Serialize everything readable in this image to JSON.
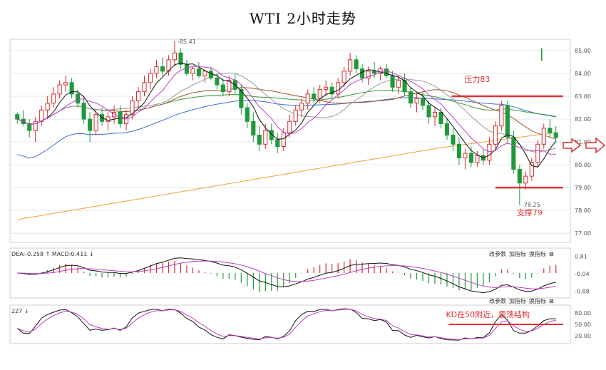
{
  "title": "WTI 2小时走势",
  "chart_data": [
    {
      "type": "candlestick",
      "panel": "price",
      "ylim": [
        76.6,
        85.5
      ],
      "y_ticks": [
        "85.00",
        "84.00",
        "83.00",
        "82.00",
        "81.00",
        "80.00",
        "79.00",
        "78.00",
        "77.00"
      ],
      "y_tick_values": [
        85,
        84,
        83,
        82,
        81,
        80,
        79,
        78,
        77
      ],
      "high_label": "85.41",
      "low_label": "78.25",
      "annotations": {
        "resistance": "压力83",
        "support": "支撑79"
      },
      "levels": {
        "resistance": 83.0,
        "support": 79.0
      },
      "candles": [
        [
          82.2,
          82.3,
          81.8,
          82.0
        ],
        [
          82.0,
          82.4,
          81.7,
          81.8
        ],
        [
          81.8,
          82.0,
          81.2,
          81.5
        ],
        [
          81.5,
          82.1,
          81.0,
          81.9
        ],
        [
          81.9,
          82.6,
          81.7,
          82.4
        ],
        [
          82.4,
          83.0,
          82.0,
          82.7
        ],
        [
          82.7,
          83.4,
          82.5,
          83.1
        ],
        [
          83.1,
          83.7,
          82.9,
          83.5
        ],
        [
          83.5,
          83.9,
          83.2,
          83.6
        ],
        [
          83.6,
          83.8,
          82.9,
          83.1
        ],
        [
          83.1,
          83.3,
          82.5,
          82.7
        ],
        [
          82.7,
          83.0,
          81.8,
          82.0
        ],
        [
          82.0,
          82.3,
          81.0,
          81.5
        ],
        [
          81.5,
          82.4,
          81.3,
          82.2
        ],
        [
          82.2,
          82.5,
          81.7,
          81.9
        ],
        [
          81.9,
          82.3,
          81.5,
          82.1
        ],
        [
          82.1,
          82.6,
          81.8,
          82.3
        ],
        [
          82.3,
          82.6,
          81.6,
          81.8
        ],
        [
          81.8,
          82.4,
          81.5,
          82.2
        ],
        [
          82.2,
          83.0,
          82.0,
          82.8
        ],
        [
          82.8,
          83.4,
          82.5,
          83.2
        ],
        [
          83.2,
          83.9,
          83.0,
          83.6
        ],
        [
          83.6,
          84.2,
          83.3,
          84.0
        ],
        [
          84.0,
          84.6,
          83.8,
          84.3
        ],
        [
          84.3,
          84.7,
          83.9,
          84.1
        ],
        [
          84.1,
          84.8,
          83.9,
          84.6
        ],
        [
          84.6,
          85.41,
          84.3,
          84.9
        ],
        [
          84.9,
          85.1,
          84.2,
          84.4
        ],
        [
          84.4,
          84.6,
          83.9,
          84.0
        ],
        [
          84.0,
          84.3,
          83.7,
          84.2
        ],
        [
          84.2,
          84.5,
          83.8,
          83.9
        ],
        [
          83.9,
          84.2,
          83.6,
          84.1
        ],
        [
          84.1,
          84.3,
          83.7,
          83.8
        ],
        [
          83.8,
          84.0,
          83.3,
          83.5
        ],
        [
          83.5,
          83.8,
          83.0,
          83.2
        ],
        [
          83.2,
          83.9,
          83.0,
          83.7
        ],
        [
          83.7,
          84.0,
          83.1,
          83.3
        ],
        [
          83.3,
          83.5,
          82.2,
          82.5
        ],
        [
          82.5,
          82.7,
          81.6,
          81.9
        ],
        [
          81.9,
          82.3,
          81.0,
          81.3
        ],
        [
          81.3,
          81.7,
          80.6,
          80.9
        ],
        [
          80.9,
          81.8,
          80.7,
          81.5
        ],
        [
          81.5,
          81.8,
          80.9,
          81.1
        ],
        [
          81.1,
          81.4,
          80.5,
          80.8
        ],
        [
          80.8,
          81.6,
          80.6,
          81.4
        ],
        [
          81.4,
          82.2,
          81.2,
          81.9
        ],
        [
          81.9,
          82.6,
          81.7,
          82.4
        ],
        [
          82.4,
          82.9,
          82.1,
          82.7
        ],
        [
          82.7,
          83.3,
          82.4,
          83.1
        ],
        [
          83.1,
          83.4,
          82.7,
          82.9
        ],
        [
          82.9,
          83.5,
          82.7,
          83.3
        ],
        [
          83.3,
          83.7,
          83.0,
          83.4
        ],
        [
          83.4,
          83.6,
          82.9,
          83.1
        ],
        [
          83.1,
          83.8,
          82.9,
          83.6
        ],
        [
          83.6,
          84.3,
          83.4,
          84.1
        ],
        [
          84.1,
          84.9,
          83.9,
          84.6
        ],
        [
          84.6,
          84.8,
          84.0,
          84.2
        ],
        [
          84.2,
          84.4,
          83.6,
          83.8
        ],
        [
          83.8,
          84.3,
          83.5,
          84.1
        ],
        [
          84.1,
          84.5,
          83.8,
          84.0
        ],
        [
          84.0,
          84.3,
          83.7,
          84.2
        ],
        [
          84.2,
          84.4,
          83.8,
          83.9
        ],
        [
          83.9,
          84.1,
          83.2,
          83.4
        ],
        [
          83.4,
          83.9,
          83.1,
          83.7
        ],
        [
          83.7,
          84.0,
          83.0,
          83.2
        ],
        [
          83.2,
          83.4,
          82.5,
          82.7
        ],
        [
          82.7,
          83.1,
          82.3,
          82.9
        ],
        [
          82.9,
          83.2,
          82.4,
          82.6
        ],
        [
          82.6,
          82.8,
          81.8,
          82.1
        ],
        [
          82.1,
          82.5,
          81.7,
          82.3
        ],
        [
          82.3,
          82.5,
          81.6,
          81.8
        ],
        [
          81.8,
          82.0,
          81.1,
          81.3
        ],
        [
          81.3,
          81.6,
          80.6,
          80.9
        ],
        [
          80.9,
          81.2,
          80.0,
          80.3
        ],
        [
          80.3,
          80.7,
          79.8,
          80.5
        ],
        [
          80.5,
          80.8,
          79.9,
          80.1
        ],
        [
          80.1,
          80.6,
          79.9,
          80.4
        ],
        [
          80.4,
          80.7,
          80.0,
          80.2
        ],
        [
          80.2,
          81.2,
          80.0,
          80.9
        ],
        [
          80.9,
          81.9,
          80.7,
          81.7
        ],
        [
          81.7,
          82.8,
          81.5,
          82.6
        ],
        [
          82.6,
          82.8,
          80.9,
          81.2
        ],
        [
          81.2,
          81.5,
          79.6,
          79.8
        ],
        [
          79.8,
          80.0,
          78.25,
          79.2
        ],
        [
          79.2,
          79.7,
          78.9,
          79.5
        ],
        [
          79.5,
          80.3,
          79.3,
          80.1
        ],
        [
          80.1,
          81.1,
          79.9,
          80.9
        ],
        [
          80.9,
          81.8,
          80.7,
          81.6
        ],
        [
          81.6,
          82.0,
          81.2,
          81.4
        ],
        [
          81.4,
          81.7,
          81.0,
          81.2
        ]
      ]
    },
    {
      "type": "macd",
      "panel": "macd",
      "header": "DEA:-0.258 ↑ MACD:0.411 ↓",
      "y_ticks": [
        "0.81",
        "-0.04",
        "-0.88"
      ],
      "y_tick_values": [
        0.81,
        -0.04,
        -0.88
      ],
      "ylim": [
        -1.2,
        1.2
      ],
      "buttons": [
        "改参数",
        "加指标",
        "换指标",
        "⊠"
      ]
    },
    {
      "type": "line",
      "panel": "kd",
      "header": "227 ↓",
      "y_ticks": [
        "80.00",
        "50.00",
        "20.00"
      ],
      "y_tick_values": [
        80,
        50,
        20
      ],
      "ylim": [
        0,
        100
      ],
      "level": 50,
      "annotation": "KD在50附近，震荡结构",
      "buttons": [
        "改参数",
        "加指标",
        "换指标",
        "⊠"
      ]
    }
  ],
  "colors": {
    "up": "#d62d2d",
    "down": "#1f9a3a",
    "resistance": "#e03030",
    "blue_ma": "#3b6fc7",
    "orange_ma": "#f0a23a"
  }
}
